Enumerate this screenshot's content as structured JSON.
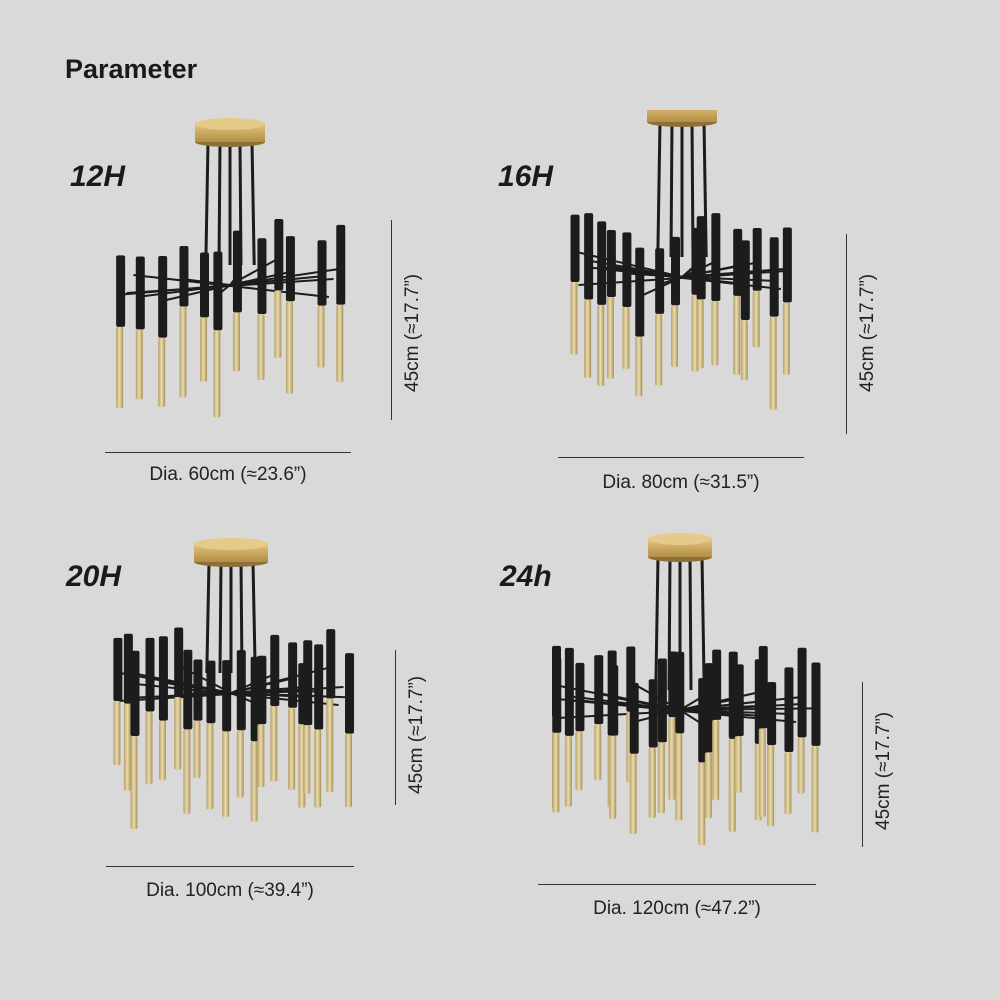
{
  "title": "Parameter",
  "colors": {
    "background": "#d9d9d9",
    "canopy": "#c9a55a",
    "rod": "#1c1c1c",
    "glow": "#e9dcae"
  },
  "variants": [
    {
      "label": "12H",
      "diameter": "Dia. 60cm (≈23.6”)",
      "height": "45cm (≈17.7”)",
      "tubes": 12
    },
    {
      "label": "16H",
      "diameter": "Dia. 80cm (≈31.5”)",
      "height": "45cm (≈17.7”)",
      "tubes": 16
    },
    {
      "label": "20H",
      "diameter": "Dia. 100cm (≈39.4”)",
      "height": "45cm (≈17.7”)",
      "tubes": 20
    },
    {
      "label": "24h",
      "diameter": "Dia. 120cm (≈47.2”)",
      "height": "45cm (≈17.7”)",
      "tubes": 24
    }
  ]
}
